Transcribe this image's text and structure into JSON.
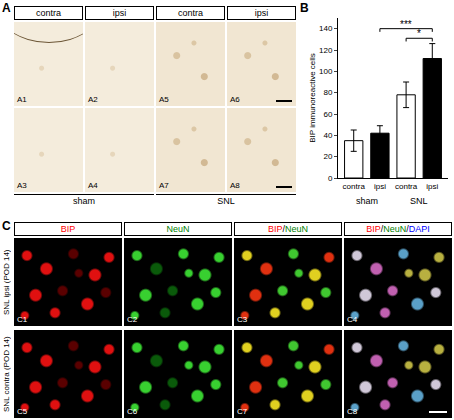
{
  "figure": {
    "panel_a": {
      "letter": "A",
      "headers": [
        "contra",
        "ipsi",
        "contra",
        "ipsi"
      ],
      "images": [
        [
          "A1",
          "A2",
          "A5",
          "A6"
        ],
        [
          "A3",
          "A4",
          "A7",
          "A8"
        ]
      ],
      "groups": [
        "sham",
        "SNL"
      ]
    },
    "panel_c": {
      "letter": "C",
      "headers": [
        [
          {
            "text": "BIP",
            "color": "red"
          }
        ],
        [
          {
            "text": "NeuN",
            "color": "green"
          }
        ],
        [
          {
            "text": "BIP",
            "color": "red"
          },
          {
            "text": "/",
            "color": "black"
          },
          {
            "text": "NeuN",
            "color": "green"
          }
        ],
        [
          {
            "text": "BIP",
            "color": "red"
          },
          {
            "text": "/",
            "color": "black"
          },
          {
            "text": "NeuN",
            "color": "green"
          },
          {
            "text": "/",
            "color": "black"
          },
          {
            "text": "DAPI",
            "color": "blue"
          }
        ]
      ],
      "rows": [
        {
          "label": "SNL ipsi (POD 14)",
          "images": [
            "C1",
            "C2",
            "C3",
            "C4"
          ]
        },
        {
          "label": "SNL contra (POD 14)",
          "images": [
            "C5",
            "C6",
            "C7",
            "C8"
          ]
        }
      ]
    }
  },
  "chart_data": {
    "type": "bar",
    "panel": "B",
    "y_label": "BIP immunoreactive cells",
    "categories": [
      "contra",
      "ipsi",
      "contra",
      "ipsi"
    ],
    "groups": [
      "sham",
      "sham",
      "SNL",
      "SNL"
    ],
    "values": [
      35,
      42,
      78,
      112
    ],
    "errors": [
      10,
      7,
      12,
      14
    ],
    "colors": [
      "#ffffff",
      "#000000",
      "#ffffff",
      "#000000"
    ],
    "ylim": [
      0,
      150
    ],
    "yticks": [
      0,
      20,
      40,
      60,
      80,
      100,
      120,
      140
    ],
    "grid": false,
    "significance": [
      {
        "text": "*",
        "from": 2,
        "to": 3
      },
      {
        "text": "***",
        "from": 1,
        "to": 3
      }
    ]
  }
}
